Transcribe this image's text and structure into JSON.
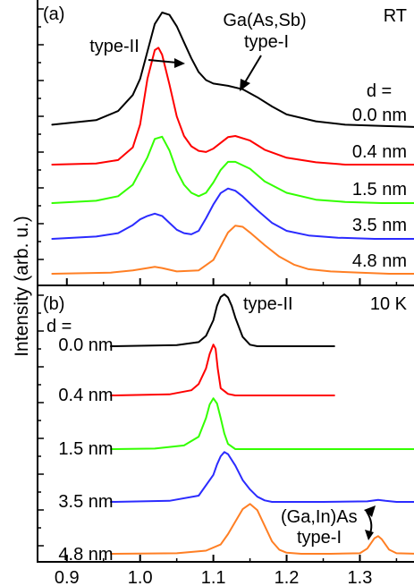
{
  "figure": {
    "ylabel": "Intensity (arb. u.)",
    "xtick_labels": [
      "0.9",
      "1.0",
      "1.1",
      "1.2",
      "1.3"
    ]
  },
  "panel_a": {
    "tag": "(a)",
    "condition": "RT",
    "d_header": "d =",
    "annot_type2": "type-II",
    "annot_gaassb_line1": "Ga(As,Sb)",
    "annot_gaassb_line2": "type-I",
    "trace_labels": [
      "0.0 nm",
      "0.4 nm",
      "1.5 nm",
      "3.5 nm",
      "4.8 nm"
    ]
  },
  "panel_b": {
    "tag": "(b)",
    "condition": "10 K",
    "d_header": "d =",
    "annot_type2": "type-II",
    "annot_gainas_line1": "(Ga,In)As",
    "annot_gainas_line2": "type-I",
    "trace_labels": [
      "0.0 nm",
      "0.4 nm",
      "1.5 nm",
      "3.5 nm",
      "4.8 nm"
    ]
  },
  "chart_data": [
    {
      "type": "line",
      "panel": "(a)",
      "title": "RT",
      "xlabel": "",
      "ylabel": "Intensity (arb. u.)",
      "xlim": [
        0.86,
        1.38
      ],
      "x_ticks": [
        0.9,
        1.0,
        1.1,
        1.2,
        1.3
      ],
      "grid": false,
      "series": [
        {
          "name": "0.0 nm",
          "color": "#000000",
          "offset": 4,
          "x": [
            0.88,
            0.94,
            0.97,
            0.99,
            1.0,
            1.01,
            1.02,
            1.03,
            1.04,
            1.05,
            1.06,
            1.07,
            1.08,
            1.09,
            1.1,
            1.12,
            1.14,
            1.16,
            1.18,
            1.2,
            1.24,
            1.28,
            1.33,
            1.38
          ],
          "y": [
            0.02,
            0.06,
            0.14,
            0.28,
            0.42,
            0.66,
            0.9,
            1.0,
            0.98,
            0.88,
            0.74,
            0.6,
            0.48,
            0.41,
            0.38,
            0.36,
            0.33,
            0.26,
            0.18,
            0.11,
            0.05,
            0.02,
            0.01,
            0.0
          ]
        },
        {
          "name": "0.4 nm",
          "color": "#ff0000",
          "offset": 3,
          "x": [
            0.88,
            0.94,
            0.97,
            0.99,
            1.0,
            1.01,
            1.02,
            1.025,
            1.03,
            1.04,
            1.05,
            1.06,
            1.07,
            1.08,
            1.09,
            1.1,
            1.12,
            1.13,
            1.15,
            1.17,
            1.2,
            1.24,
            1.28,
            1.33,
            1.38
          ],
          "y": [
            0.0,
            0.01,
            0.04,
            0.15,
            0.35,
            0.75,
            1.0,
            1.02,
            0.96,
            0.7,
            0.42,
            0.25,
            0.16,
            0.12,
            0.11,
            0.14,
            0.24,
            0.25,
            0.21,
            0.13,
            0.06,
            0.02,
            0.0,
            0.0,
            0.0
          ]
        },
        {
          "name": "1.5 nm",
          "color": "#33ff00",
          "offset": 2,
          "x": [
            0.88,
            0.94,
            0.97,
            0.99,
            1.0,
            1.01,
            1.02,
            1.03,
            1.04,
            1.05,
            1.06,
            1.07,
            1.08,
            1.09,
            1.1,
            1.11,
            1.12,
            1.13,
            1.15,
            1.17,
            1.2,
            1.24,
            1.28,
            1.33,
            1.38
          ],
          "y": [
            0.0,
            0.02,
            0.06,
            0.16,
            0.28,
            0.4,
            0.56,
            0.58,
            0.46,
            0.28,
            0.16,
            0.09,
            0.06,
            0.09,
            0.18,
            0.29,
            0.36,
            0.36,
            0.3,
            0.19,
            0.09,
            0.03,
            0.01,
            0.0,
            0.0
          ]
        },
        {
          "name": "3.5 nm",
          "color": "#2b2bff",
          "offset": 1,
          "x": [
            0.88,
            0.94,
            0.97,
            0.99,
            1.0,
            1.01,
            1.02,
            1.03,
            1.04,
            1.05,
            1.06,
            1.07,
            1.08,
            1.09,
            1.1,
            1.11,
            1.12,
            1.13,
            1.14,
            1.16,
            1.18,
            1.2,
            1.23,
            1.27,
            1.32,
            1.38
          ],
          "y": [
            0.0,
            0.02,
            0.05,
            0.12,
            0.17,
            0.2,
            0.22,
            0.2,
            0.14,
            0.08,
            0.05,
            0.04,
            0.07,
            0.18,
            0.3,
            0.4,
            0.44,
            0.42,
            0.37,
            0.25,
            0.14,
            0.07,
            0.03,
            0.01,
            0.0,
            0.0
          ]
        },
        {
          "name": "4.8 nm",
          "color": "#ff7f24",
          "offset": 0,
          "x": [
            0.88,
            0.96,
            0.99,
            1.01,
            1.02,
            1.03,
            1.05,
            1.08,
            1.1,
            1.11,
            1.12,
            1.13,
            1.14,
            1.15,
            1.17,
            1.19,
            1.21,
            1.23,
            1.26,
            1.3,
            1.34,
            1.38
          ],
          "y": [
            0.0,
            0.01,
            0.03,
            0.05,
            0.06,
            0.05,
            0.02,
            0.03,
            0.12,
            0.24,
            0.36,
            0.42,
            0.41,
            0.36,
            0.25,
            0.15,
            0.08,
            0.04,
            0.02,
            0.01,
            0.0,
            0.0
          ]
        }
      ]
    },
    {
      "type": "line",
      "panel": "(b)",
      "title": "10 K",
      "xlabel": "",
      "ylabel": "Intensity (arb. u.)",
      "xlim": [
        0.86,
        1.38
      ],
      "x_ticks": [
        0.9,
        1.0,
        1.1,
        1.2,
        1.3
      ],
      "grid": false,
      "series": [
        {
          "name": "0.0 nm",
          "color": "#000000",
          "offset": 4,
          "x": [
            0.96,
            1.05,
            1.08,
            1.09,
            1.1,
            1.105,
            1.11,
            1.115,
            1.12,
            1.125,
            1.13,
            1.14,
            1.15,
            1.16,
            1.2,
            1.265
          ],
          "y": [
            0.0,
            0.02,
            0.08,
            0.2,
            0.5,
            0.78,
            0.95,
            1.0,
            0.94,
            0.78,
            0.55,
            0.18,
            0.03,
            0.0,
            0.0,
            0.0
          ]
        },
        {
          "name": "0.4 nm",
          "color": "#ff0000",
          "offset": 3,
          "x": [
            0.96,
            1.04,
            1.07,
            1.08,
            1.09,
            1.095,
            1.1,
            1.103,
            1.106,
            1.11,
            1.12,
            1.13,
            1.2,
            1.265
          ],
          "y": [
            0.0,
            0.02,
            0.1,
            0.22,
            0.52,
            0.8,
            0.98,
            0.9,
            0.52,
            0.14,
            0.03,
            0.0,
            0.0,
            0.0
          ]
        },
        {
          "name": "1.5 nm",
          "color": "#33ff00",
          "offset": 2,
          "x": [
            0.96,
            1.02,
            1.06,
            1.08,
            1.09,
            1.095,
            1.1,
            1.105,
            1.11,
            1.115,
            1.12,
            1.13,
            1.2,
            1.38
          ],
          "y": [
            0.0,
            0.01,
            0.07,
            0.24,
            0.6,
            0.86,
            0.98,
            0.88,
            0.6,
            0.3,
            0.1,
            0.0,
            0.0,
            0.0
          ]
        },
        {
          "name": "3.5 nm",
          "color": "#2b2bff",
          "offset": 1,
          "x": [
            0.96,
            1.04,
            1.08,
            1.1,
            1.105,
            1.11,
            1.115,
            1.12,
            1.13,
            1.14,
            1.15,
            1.16,
            1.17,
            1.18,
            1.25,
            1.31,
            1.325,
            1.335,
            1.35,
            1.38
          ],
          "y": [
            0.0,
            0.02,
            0.12,
            0.52,
            0.72,
            0.88,
            0.96,
            0.92,
            0.7,
            0.42,
            0.24,
            0.1,
            0.03,
            0.0,
            0.0,
            0.01,
            0.04,
            0.02,
            0.0,
            0.0
          ]
        },
        {
          "name": "4.8 nm",
          "color": "#ff7f24",
          "offset": 0,
          "x": [
            0.96,
            1.05,
            1.09,
            1.11,
            1.12,
            1.13,
            1.14,
            1.15,
            1.16,
            1.17,
            1.18,
            1.19,
            1.2,
            1.22,
            1.26,
            1.3,
            1.31,
            1.32,
            1.325,
            1.33,
            1.34,
            1.35,
            1.38
          ],
          "y": [
            0.0,
            0.01,
            0.06,
            0.18,
            0.38,
            0.62,
            0.86,
            0.96,
            0.84,
            0.54,
            0.24,
            0.08,
            0.02,
            0.0,
            0.0,
            0.01,
            0.1,
            0.3,
            0.34,
            0.28,
            0.08,
            0.01,
            0.0
          ]
        }
      ]
    }
  ]
}
